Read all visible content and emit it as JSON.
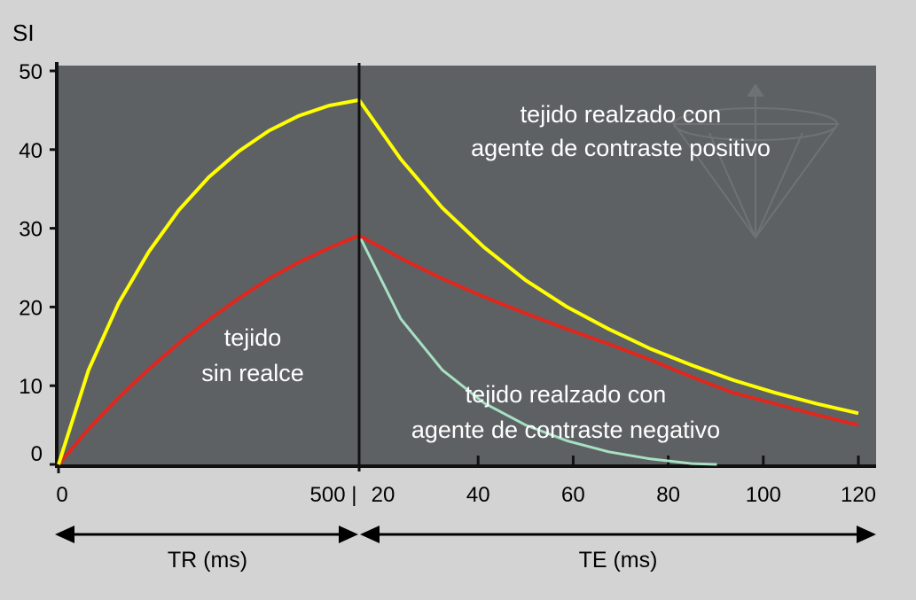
{
  "chart_data": {
    "type": "line",
    "ylabel": "SI",
    "ylim": [
      0,
      50
    ],
    "y_ticks": [
      "0",
      "10",
      "20",
      "30",
      "40",
      "50"
    ],
    "tr_axis": {
      "ticks": [
        "0",
        "500 |"
      ],
      "xlim": [
        0,
        500
      ],
      "label": "TR (ms)"
    },
    "te_axis": {
      "ticks": [
        "20",
        "40",
        "60",
        "80",
        "100",
        "120"
      ],
      "xlim": [
        0,
        122
      ],
      "label": "TE (ms)"
    },
    "colors": {
      "background": "#d3d3d3",
      "plot_area": "#5e6164",
      "positive": "#ffff00",
      "unenhanced": "#e0271e",
      "negative": "#a8e0c4",
      "axis": "#111111"
    },
    "annotations": {
      "unenhanced": [
        "tejido",
        "sin realce"
      ],
      "positive": [
        "tejido realzado con",
        "agente de contraste positivo"
      ],
      "negative": [
        "tejido realzado con",
        "agente de contraste negativo"
      ]
    },
    "series": [
      {
        "key": "positive",
        "tr": [
          [
            0,
            0
          ],
          [
            50,
            12.0
          ],
          [
            100,
            20.5
          ],
          [
            150,
            27.0
          ],
          [
            200,
            32.3
          ],
          [
            250,
            36.5
          ],
          [
            300,
            39.8
          ],
          [
            350,
            42.4
          ],
          [
            400,
            44.3
          ],
          [
            450,
            45.6
          ],
          [
            500,
            46.3
          ]
        ],
        "te": [
          [
            0,
            46.3
          ],
          [
            10,
            38.8
          ],
          [
            20,
            32.6
          ],
          [
            30,
            27.6
          ],
          [
            40,
            23.4
          ],
          [
            50,
            20.0
          ],
          [
            60,
            17.2
          ],
          [
            70,
            14.7
          ],
          [
            80,
            12.6
          ],
          [
            90,
            10.7
          ],
          [
            100,
            9.1
          ],
          [
            110,
            7.7
          ],
          [
            120,
            6.5
          ]
        ]
      },
      {
        "key": "unenhanced",
        "tr": [
          [
            0,
            0
          ],
          [
            50,
            4.5
          ],
          [
            100,
            8.5
          ],
          [
            150,
            12.1
          ],
          [
            200,
            15.4
          ],
          [
            250,
            18.4
          ],
          [
            300,
            21.1
          ],
          [
            350,
            23.6
          ],
          [
            400,
            25.7
          ],
          [
            450,
            27.5
          ],
          [
            500,
            29.1
          ]
        ],
        "te": [
          [
            0,
            29.1
          ],
          [
            10,
            26.2
          ],
          [
            20,
            23.6
          ],
          [
            30,
            21.3
          ],
          [
            40,
            19.2
          ],
          [
            50,
            17.2
          ],
          [
            60,
            15.3
          ],
          [
            70,
            13.3
          ],
          [
            80,
            11.1
          ],
          [
            90,
            9.1
          ],
          [
            100,
            7.7
          ],
          [
            110,
            6.3
          ],
          [
            120,
            5.0
          ]
        ]
      },
      {
        "key": "negative",
        "te": [
          [
            0,
            29.1
          ],
          [
            10,
            18.5
          ],
          [
            20,
            12.0
          ],
          [
            30,
            7.8
          ],
          [
            40,
            5.0
          ],
          [
            50,
            3.0
          ],
          [
            60,
            1.6
          ],
          [
            70,
            0.7
          ],
          [
            80,
            0.1
          ],
          [
            86,
            0.0
          ]
        ]
      }
    ]
  }
}
